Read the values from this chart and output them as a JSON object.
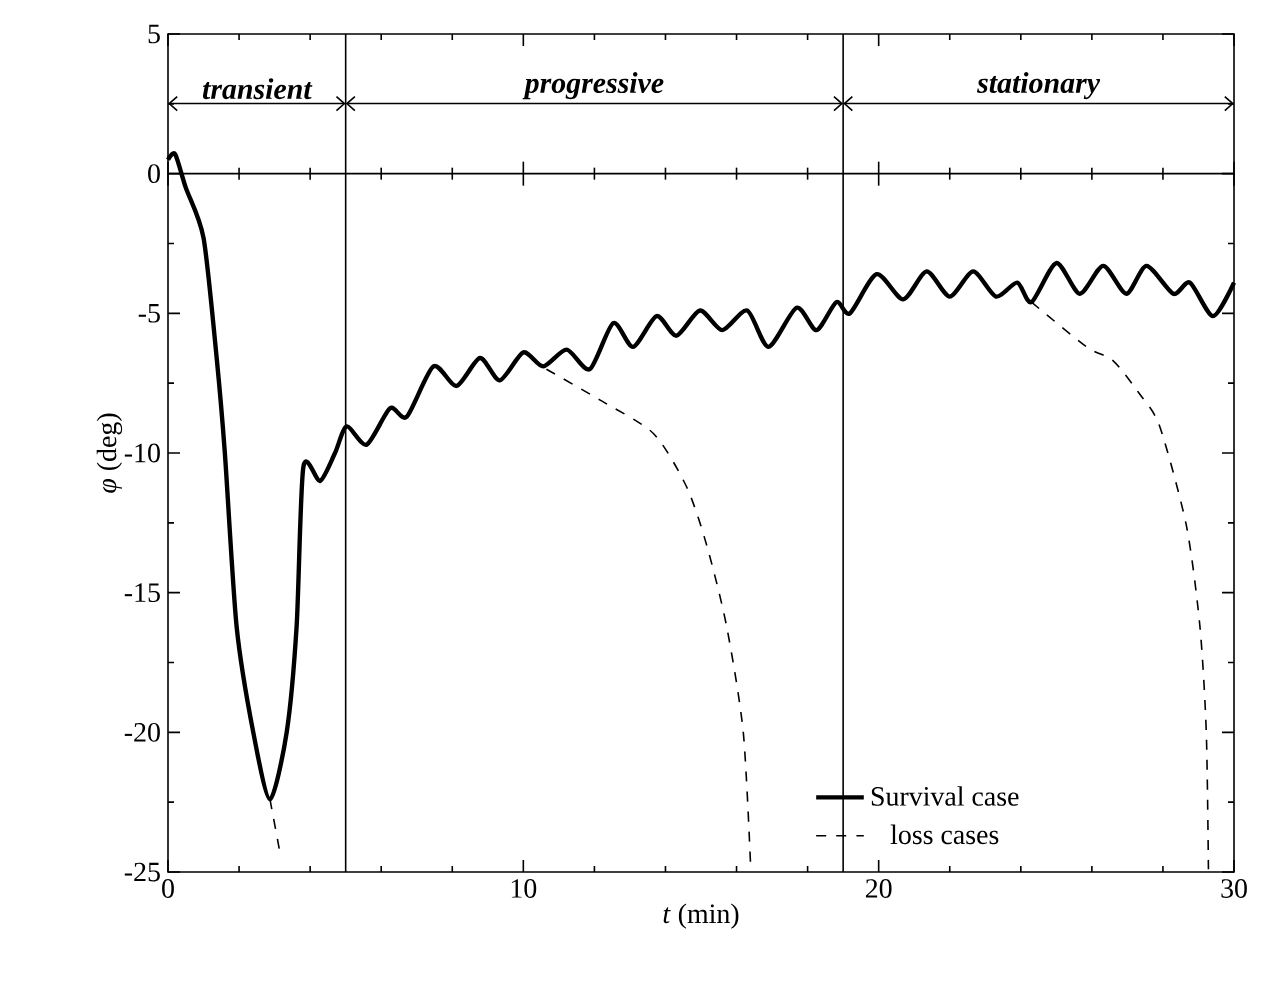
{
  "chart_data": {
    "type": "line",
    "xlabel": "*t* (min)",
    "ylabel": "*φ* (deg)",
    "xlim": [
      0,
      30
    ],
    "ylim": [
      -25,
      5
    ],
    "xticks": [
      0,
      10,
      20,
      30
    ],
    "yticks": [
      -25,
      -20,
      -15,
      -10,
      -5,
      0,
      5
    ],
    "legend": "bottom right",
    "grid": false,
    "marker": "none",
    "ref_lines": [
      {
        "axis": "x",
        "value": 5
      },
      {
        "axis": "x",
        "value": 19
      },
      {
        "axis": "y",
        "value": 0
      }
    ],
    "annotations": [
      "transient",
      "progressive",
      "stationary"
    ],
    "series": [
      {
        "name": "Survival case",
        "color": "#000000",
        "line_style": "solid",
        "x": [
          0,
          0.2,
          0.5,
          1.0,
          1.37,
          1.6,
          1.93,
          2.4,
          2.87,
          3.34,
          3.62,
          3.81,
          4.28,
          4.7,
          5.03,
          5.59,
          6.25,
          6.72,
          7.47,
          8.12,
          8.78,
          9.34,
          10.0,
          10.56,
          11.22,
          11.87,
          12.53,
          13.09,
          13.75,
          14.31,
          14.97,
          15.6,
          16.3,
          16.9,
          17.69,
          18.25,
          18.81,
          19.19,
          19.94,
          20.69,
          21.35,
          22.0,
          22.66,
          23.3,
          23.9,
          24.3,
          25.0,
          25.66,
          26.32,
          26.97,
          27.54,
          28.29,
          28.76,
          29.41,
          30
        ],
        "values": [
          0.5,
          0.7,
          -0.5,
          -2.3,
          -6.6,
          -10,
          -16.2,
          -20,
          -22.4,
          -20,
          -16.2,
          -10.5,
          -11.0,
          -10,
          -9.05,
          -9.7,
          -8.4,
          -8.7,
          -6.9,
          -7.6,
          -6.6,
          -7.4,
          -6.4,
          -6.9,
          -6.3,
          -7.0,
          -5.35,
          -6.2,
          -5.1,
          -5.8,
          -4.9,
          -5.6,
          -4.9,
          -6.2,
          -4.8,
          -5.6,
          -4.6,
          -5.0,
          -3.6,
          -4.5,
          -3.5,
          -4.4,
          -3.5,
          -4.4,
          -3.9,
          -4.6,
          -3.2,
          -4.3,
          -3.3,
          -4.3,
          -3.3,
          -4.3,
          -3.9,
          -5.1,
          -3.9
        ]
      },
      {
        "name": "loss cases",
        "color": "#000000",
        "line_style": "dashed",
        "x": [
          10.65,
          12.15,
          13.66,
          14.59,
          15.16,
          15.72,
          16.19,
          16.4
        ],
        "values": [
          -7.0,
          -8.1,
          -9.3,
          -11.2,
          -13.3,
          -16.2,
          -20.0,
          -24.9
        ]
      },
      {
        "color": "#000000",
        "line_style": "dashed",
        "x": [
          2.87,
          3.15
        ],
        "values": [
          -22.4,
          -24.3
        ]
      },
      {
        "color": "#000000",
        "line_style": "dashed",
        "x": [
          24.3,
          25.85,
          26.6,
          27.35,
          27.91,
          28.66,
          29.04,
          29.22,
          29.28
        ],
        "values": [
          -4.6,
          -6.2,
          -6.7,
          -7.9,
          -9.05,
          -12.6,
          -16.2,
          -20.0,
          -24.9
        ]
      }
    ]
  }
}
